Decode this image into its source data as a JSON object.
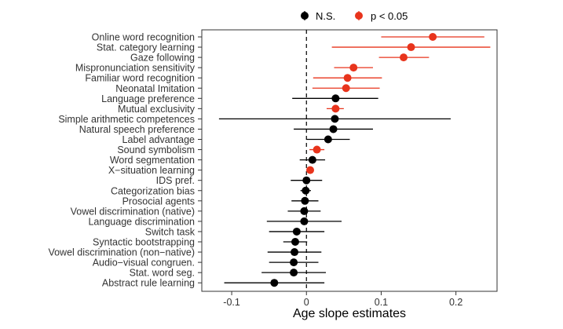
{
  "chart_data": {
    "type": "forest",
    "title": "",
    "xlabel": "Age slope estimates",
    "ylabel": "",
    "xlim": [
      -0.14,
      0.255
    ],
    "x_ticks": [
      -0.1,
      0.0,
      0.1,
      0.2
    ],
    "x_tick_labels": [
      "-0.1",
      "0",
      "0.1",
      "0.2"
    ],
    "reference_line": 0,
    "legend": [
      {
        "label": "N.S.",
        "color": "#000000"
      },
      {
        "label": "p < 0.05",
        "color": "#e8341c"
      }
    ],
    "items": [
      {
        "label": "Online word recognition",
        "estimate": 0.169,
        "lower": 0.1,
        "upper": 0.238,
        "significant": true
      },
      {
        "label": "Stat. category learning",
        "estimate": 0.14,
        "lower": 0.034,
        "upper": 0.246,
        "significant": true
      },
      {
        "label": "Gaze following",
        "estimate": 0.13,
        "lower": 0.097,
        "upper": 0.164,
        "significant": true
      },
      {
        "label": "Mispronunciation sensitivity",
        "estimate": 0.063,
        "lower": 0.037,
        "upper": 0.089,
        "significant": true
      },
      {
        "label": "Familiar word recognition",
        "estimate": 0.055,
        "lower": 0.009,
        "upper": 0.101,
        "significant": true
      },
      {
        "label": "Neonatal Imitation",
        "estimate": 0.053,
        "lower": 0.008,
        "upper": 0.098,
        "significant": true
      },
      {
        "label": "Language preference",
        "estimate": 0.039,
        "lower": -0.019,
        "upper": 0.096,
        "significant": false
      },
      {
        "label": "Mutual exclusivity",
        "estimate": 0.039,
        "lower": 0.027,
        "upper": 0.05,
        "significant": true
      },
      {
        "label": "Simple arithmetic competences",
        "estimate": 0.038,
        "lower": -0.117,
        "upper": 0.193,
        "significant": false
      },
      {
        "label": "Natural speech preference",
        "estimate": 0.036,
        "lower": -0.017,
        "upper": 0.089,
        "significant": false
      },
      {
        "label": "Label advantage",
        "estimate": 0.029,
        "lower": 0.0,
        "upper": 0.058,
        "significant": false
      },
      {
        "label": "Sound symbolism",
        "estimate": 0.014,
        "lower": 0.004,
        "upper": 0.024,
        "significant": true
      },
      {
        "label": "Word segmentation",
        "estimate": 0.008,
        "lower": -0.009,
        "upper": 0.025,
        "significant": false
      },
      {
        "label": "X−situation learning",
        "estimate": 0.005,
        "lower": 0.002,
        "upper": 0.008,
        "significant": true
      },
      {
        "label": "IDS pref.",
        "estimate": 0.0,
        "lower": -0.021,
        "upper": 0.021,
        "significant": false
      },
      {
        "label": "Categorization bias",
        "estimate": -0.001,
        "lower": -0.008,
        "upper": 0.006,
        "significant": false
      },
      {
        "label": "Prosocial agents",
        "estimate": -0.002,
        "lower": -0.02,
        "upper": 0.016,
        "significant": false
      },
      {
        "label": "Vowel discrimination (native)",
        "estimate": -0.003,
        "lower": -0.025,
        "upper": 0.019,
        "significant": false
      },
      {
        "label": "Language discrimination",
        "estimate": -0.003,
        "lower": -0.053,
        "upper": 0.047,
        "significant": false
      },
      {
        "label": "Switch task",
        "estimate": -0.013,
        "lower": -0.05,
        "upper": 0.024,
        "significant": false
      },
      {
        "label": "Syntactic bootstrapping",
        "estimate": -0.015,
        "lower": -0.031,
        "upper": 0.001,
        "significant": false
      },
      {
        "label": "Vowel discrimination (non−native)",
        "estimate": -0.016,
        "lower": -0.052,
        "upper": 0.02,
        "significant": false
      },
      {
        "label": "Audio−visual congruen.",
        "estimate": -0.017,
        "lower": -0.05,
        "upper": 0.016,
        "significant": false
      },
      {
        "label": "Stat. word seg.",
        "estimate": -0.017,
        "lower": -0.06,
        "upper": 0.026,
        "significant": false
      },
      {
        "label": "Abstract rule learning",
        "estimate": -0.043,
        "lower": -0.11,
        "upper": 0.024,
        "significant": false
      }
    ]
  }
}
